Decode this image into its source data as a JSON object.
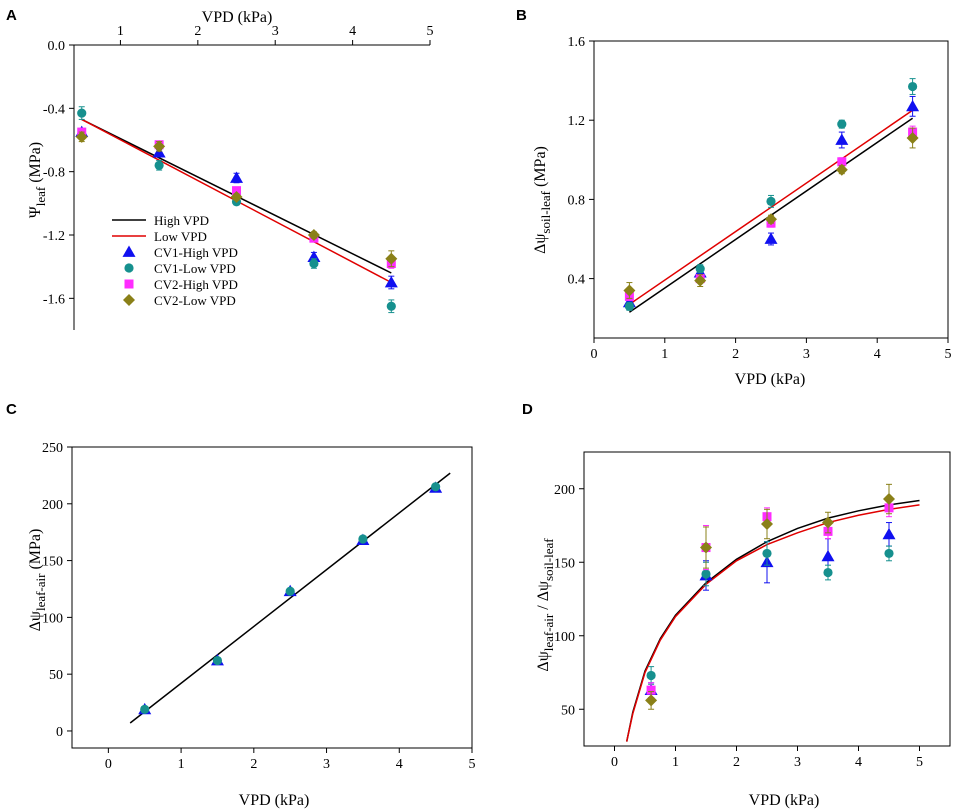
{
  "colors": {
    "cv1_high": "#1010f0",
    "cv1_low": "#16908e",
    "cv2_high": "#ff2cff",
    "cv2_low": "#8a8018",
    "fit_high": "#000000",
    "fit_low": "#e00000",
    "axis": "#000000"
  },
  "chart_data": [
    {
      "panel": "A",
      "type": "scatter",
      "xlabel": "VPD (kPa)",
      "ylabel_main": "Ψ",
      "ylabel_sub": "leaf",
      "ylabel_unit": " (MPa)",
      "xlim": [
        0.4,
        5
      ],
      "ylim": [
        -1.8,
        0.0
      ],
      "xticks": [
        1,
        2,
        3,
        4,
        5
      ],
      "yticks": [
        0.0,
        -0.4,
        -0.8,
        -1.2,
        -1.6
      ],
      "ytick_labels": [
        "0.0",
        "-0.4",
        "-0.8",
        "-1.2",
        "-1.6"
      ],
      "x_axis_position": "top",
      "legend_position": "bottom-left",
      "legend": [
        {
          "label": "High VPD",
          "kind": "line",
          "color_key": "fit_high"
        },
        {
          "label": "Low VPD",
          "kind": "line",
          "color_key": "fit_low"
        },
        {
          "label": "CV1-High VPD",
          "kind": "triangle",
          "color_key": "cv1_high"
        },
        {
          "label": "CV1-Low VPD",
          "kind": "circle",
          "color_key": "cv1_low"
        },
        {
          "label": "CV2-High VPD",
          "kind": "square",
          "color_key": "cv2_high"
        },
        {
          "label": "CV2-Low VPD",
          "kind": "diamond",
          "color_key": "cv2_low"
        }
      ],
      "fits": [
        {
          "name": "High VPD",
          "color_key": "fit_high",
          "x": [
            0.5,
            4.5
          ],
          "y": [
            -0.47,
            -1.44
          ]
        },
        {
          "name": "Low VPD",
          "color_key": "fit_low",
          "x": [
            0.5,
            4.5
          ],
          "y": [
            -0.47,
            -1.5
          ]
        }
      ],
      "series": [
        {
          "name": "CV1-High VPD",
          "marker": "triangle",
          "color_key": "cv1_high",
          "x": [
            0.5,
            1.5,
            2.5,
            3.5,
            4.5
          ],
          "y": [
            -0.55,
            -0.68,
            -0.84,
            -1.34,
            -1.5
          ],
          "err": [
            0.02,
            0.02,
            0.03,
            0.03,
            0.04
          ]
        },
        {
          "name": "CV1-Low VPD",
          "marker": "circle",
          "color_key": "cv1_low",
          "x": [
            0.5,
            1.5,
            2.5,
            3.5,
            4.5
          ],
          "y": [
            -0.43,
            -0.76,
            -0.99,
            -1.38,
            -1.65
          ],
          "err": [
            0.04,
            0.03,
            0.02,
            0.03,
            0.04
          ]
        },
        {
          "name": "CV2-High VPD",
          "marker": "square",
          "color_key": "cv2_high",
          "x": [
            0.5,
            1.5,
            2.5,
            3.5,
            4.5
          ],
          "y": [
            -0.55,
            -0.63,
            -0.92,
            -1.22,
            -1.38
          ],
          "err": [
            0.02,
            0.02,
            0.02,
            0.02,
            0.03
          ]
        },
        {
          "name": "CV2-Low VPD",
          "marker": "diamond",
          "color_key": "cv2_low",
          "x": [
            0.5,
            1.5,
            2.5,
            3.5,
            4.5
          ],
          "y": [
            -0.58,
            -0.64,
            -0.96,
            -1.2,
            -1.35
          ],
          "err": [
            0.03,
            0.03,
            0.02,
            0.02,
            0.05
          ]
        }
      ]
    },
    {
      "panel": "B",
      "type": "scatter",
      "xlabel": "VPD (kPa)",
      "ylabel_main": "Δψ",
      "ylabel_sub": "soil-leaf",
      "ylabel_unit": " (MPa)",
      "xlim": [
        0,
        5
      ],
      "ylim": [
        0.1,
        1.6
      ],
      "xticks": [
        0,
        1,
        2,
        3,
        4,
        5
      ],
      "yticks": [
        0.4,
        0.8,
        1.2,
        1.6
      ],
      "ytick_labels": [
        "0.4",
        "0.8",
        "1.2",
        "1.6"
      ],
      "x_axis_position": "bottom",
      "fits": [
        {
          "name": "High VPD",
          "color_key": "fit_high",
          "x": [
            0.5,
            4.5
          ],
          "y": [
            0.23,
            1.21
          ]
        },
        {
          "name": "Low VPD",
          "color_key": "fit_low",
          "x": [
            0.5,
            4.5
          ],
          "y": [
            0.27,
            1.25
          ]
        }
      ],
      "series": [
        {
          "name": "CV1-High VPD",
          "marker": "triangle",
          "color_key": "cv1_high",
          "x": [
            0.5,
            1.5,
            2.5,
            3.5,
            4.5
          ],
          "y": [
            0.28,
            0.43,
            0.6,
            1.1,
            1.27
          ],
          "err": [
            0.02,
            0.02,
            0.03,
            0.04,
            0.05
          ]
        },
        {
          "name": "CV1-Low VPD",
          "marker": "circle",
          "color_key": "cv1_low",
          "x": [
            0.5,
            1.5,
            2.5,
            3.5,
            4.5
          ],
          "y": [
            0.26,
            0.45,
            0.79,
            1.18,
            1.37
          ],
          "err": [
            0.02,
            0.02,
            0.03,
            0.02,
            0.04
          ]
        },
        {
          "name": "CV2-High VPD",
          "marker": "square",
          "color_key": "cv2_high",
          "x": [
            0.5,
            1.5,
            2.5,
            3.5,
            4.5
          ],
          "y": [
            0.31,
            0.4,
            0.68,
            0.99,
            1.14
          ],
          "err": [
            0.02,
            0.02,
            0.02,
            0.02,
            0.03
          ]
        },
        {
          "name": "CV2-Low VPD",
          "marker": "diamond",
          "color_key": "cv2_low",
          "x": [
            0.5,
            1.5,
            2.5,
            3.5,
            4.5
          ],
          "y": [
            0.34,
            0.39,
            0.7,
            0.95,
            1.11
          ],
          "err": [
            0.04,
            0.03,
            0.02,
            0.02,
            0.05
          ]
        }
      ]
    },
    {
      "panel": "C",
      "type": "scatter",
      "xlabel": "VPD (kPa)",
      "ylabel_main": "Δψ",
      "ylabel_sub": "leaf-air",
      "ylabel_unit": " (MPa)",
      "xlim": [
        -0.5,
        5
      ],
      "ylim": [
        -15,
        250
      ],
      "xticks": [
        0,
        1,
        2,
        3,
        4,
        5
      ],
      "yticks": [
        0,
        50,
        100,
        150,
        200,
        250
      ],
      "ytick_labels": [
        "0",
        "50",
        "100",
        "150",
        "200",
        "250"
      ],
      "x_axis_position": "bottom",
      "fits": [
        {
          "name": "Linear fit",
          "color_key": "fit_high",
          "x": [
            0.3,
            4.7
          ],
          "y": [
            7,
            227
          ]
        }
      ],
      "series": [
        {
          "name": "CV1-High VPD",
          "marker": "triangle",
          "color_key": "cv1_high",
          "x": [
            0.5,
            1.5,
            2.5,
            3.5,
            4.5
          ],
          "y": [
            19,
            62,
            123,
            168,
            214
          ],
          "err": [
            0,
            0,
            0,
            0,
            0
          ]
        },
        {
          "name": "CV1-Low VPD",
          "marker": "circle",
          "color_key": "cv1_low",
          "x": [
            0.5,
            1.5,
            2.5,
            3.5,
            4.5
          ],
          "y": [
            19,
            62,
            123,
            169,
            215
          ],
          "err": [
            0,
            0,
            0,
            0,
            0
          ]
        }
      ]
    },
    {
      "panel": "D",
      "type": "scatter",
      "xlabel": "VPD (kPa)",
      "ylabel_main": "Δψ",
      "ylabel_sub": "leaf-air",
      "ylabel_mid": " / Δψ",
      "ylabel_sub2": "soil-leaf",
      "xlim": [
        -0.5,
        5.5
      ],
      "ylim": [
        25,
        225
      ],
      "xticks": [
        0,
        1,
        2,
        3,
        4,
        5
      ],
      "yticks": [
        50,
        100,
        150,
        200
      ],
      "ytick_labels": [
        "50",
        "100",
        "150",
        "200"
      ],
      "x_axis_position": "bottom",
      "fits": [
        {
          "name": "High VPD",
          "color_key": "fit_high",
          "x": [
            0.2,
            0.3,
            0.5,
            0.75,
            1.0,
            1.5,
            2.0,
            2.5,
            3.0,
            3.5,
            4.0,
            4.5,
            5.0
          ],
          "y": [
            28,
            48,
            76,
            98,
            114,
            136,
            152,
            164,
            173,
            180,
            185,
            189,
            192
          ]
        },
        {
          "name": "Low VPD",
          "color_key": "fit_low",
          "x": [
            0.2,
            0.3,
            0.5,
            0.75,
            1.0,
            1.5,
            2.0,
            2.5,
            3.0,
            3.5,
            4.0,
            4.5,
            5.0
          ],
          "y": [
            28,
            47,
            75,
            97,
            113,
            135,
            151,
            162,
            170,
            177,
            182,
            186,
            189
          ]
        }
      ],
      "series": [
        {
          "name": "CV1-High VPD",
          "marker": "triangle",
          "color_key": "cv1_high",
          "x": [
            0.6,
            1.5,
            2.5,
            3.5,
            4.5
          ],
          "y": [
            63,
            141,
            150,
            154,
            169
          ],
          "err": [
            5,
            10,
            14,
            12,
            8
          ]
        },
        {
          "name": "CV1-Low VPD",
          "marker": "circle",
          "color_key": "cv1_low",
          "x": [
            0.6,
            1.5,
            2.5,
            3.5,
            4.5
          ],
          "y": [
            73,
            142,
            156,
            143,
            156
          ],
          "err": [
            6,
            8,
            8,
            5,
            5
          ]
        },
        {
          "name": "CV2-High VPD",
          "marker": "square",
          "color_key": "cv2_high",
          "x": [
            0.6,
            1.5,
            2.5,
            3.5,
            4.5
          ],
          "y": [
            63,
            160,
            181,
            171,
            187
          ],
          "err": [
            5,
            15,
            6,
            5,
            6
          ]
        },
        {
          "name": "CV2-Low VPD",
          "marker": "diamond",
          "color_key": "cv2_low",
          "x": [
            0.6,
            1.5,
            2.5,
            3.5,
            4.5
          ],
          "y": [
            56,
            160,
            176,
            177,
            193
          ],
          "err": [
            6,
            14,
            10,
            7,
            10
          ]
        }
      ]
    }
  ],
  "panels": {
    "a": {
      "letter": "A",
      "xlabel": "VPD (kPa)",
      "y_main": "Ψ",
      "y_sub": "leaf",
      "y_unit": " (MPa)"
    },
    "b": {
      "letter": "B",
      "xlabel": "VPD (kPa)",
      "y_main": "Δψ",
      "y_sub": "soil-leaf",
      "y_unit": " (MPa)"
    },
    "c": {
      "letter": "C",
      "xlabel": "VPD (kPa)",
      "y_main": "Δψ",
      "y_sub": "leaf-air",
      "y_unit": " (MPa)"
    },
    "d": {
      "letter": "D",
      "xlabel": "VPD (kPa)",
      "y_main": "Δψ",
      "y_sub": "leaf-air",
      "y_mid": " / Δψ",
      "y_sub2": "soil-leaf"
    }
  }
}
